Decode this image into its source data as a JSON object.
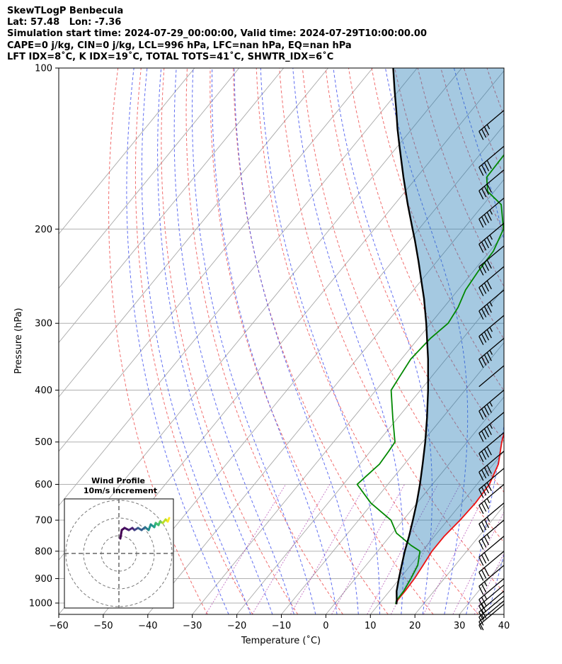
{
  "header": {
    "line1": "SkewTLogP Benbecula",
    "line2": "Lat: 57.48   Lon: -7.36",
    "line3": "Simulation start time: 2024-07-29_00:00:00, Valid time: 2024-07-29T10:00:00.00",
    "line4": "CAPE=0 j/kg, CIN=0 j/kg, LCL=996 hPa, LFC=nan hPa, EQ=nan hPa",
    "line5": "LFT IDX=8˚C, K IDX=19˚C, TOTAL TOTS=41˚C, SHWTR_IDX=6˚C"
  },
  "chart_data": {
    "type": "line",
    "title": "SkewTLogP Benbecula",
    "xlabel": "Temperature (˚C)",
    "ylabel": "Pressure (hPa)",
    "xlim": [
      -60,
      40
    ],
    "ylim": [
      1050,
      100
    ],
    "y_scale": "log",
    "grid": true,
    "x_ticks": [
      "−60",
      "−50",
      "−40",
      "−30",
      "−20",
      "−10",
      "0",
      "10",
      "20",
      "30",
      "40"
    ],
    "x_tick_values": [
      -60,
      -50,
      -40,
      -30,
      -20,
      -10,
      0,
      10,
      20,
      30,
      40
    ],
    "y_ticks": [
      "100",
      "200",
      "300",
      "400",
      "500",
      "600",
      "700",
      "800",
      "900",
      "1000"
    ],
    "y_tick_values": [
      100,
      200,
      300,
      400,
      500,
      600,
      700,
      800,
      900,
      1000
    ],
    "series": [
      {
        "color": "#ee1111",
        "pressure": [
          1005,
          990,
          950,
          900,
          850,
          800,
          750,
          700,
          650,
          600,
          550,
          500,
          450,
          400,
          350,
          300,
          270,
          250,
          230,
          210,
          200,
          180,
          160,
          140,
          130,
          120,
          110,
          100
        ],
        "values": [
          14,
          13.5,
          13.5,
          13.3,
          12.8,
          12.2,
          12.2,
          12.8,
          13.1,
          12.8,
          11.1,
          7.8,
          4.7,
          0.9,
          -3.1,
          -7.7,
          -8.9,
          -8.0,
          -6.8,
          -4.3,
          -2.3,
          1.3,
          4.9,
          10.2,
          13.7,
          16.8,
          19.1,
          19.4
        ]
      },
      {
        "color": "#008800",
        "pressure": [
          1005,
          990,
          950,
          900,
          850,
          800,
          780,
          760,
          740,
          700,
          650,
          600,
          580,
          550,
          520,
          500,
          450,
          400,
          380,
          350,
          320,
          300,
          280,
          260,
          240,
          220,
          200,
          180,
          170,
          160,
          140,
          120,
          100
        ],
        "values": [
          13.8,
          13.3,
          13.2,
          12.5,
          11.6,
          9.5,
          6.4,
          3.7,
          0.9,
          -2.7,
          -10.4,
          -16.9,
          -16.4,
          -15.6,
          -15.9,
          -16.2,
          -21.2,
          -26.6,
          -27.1,
          -27.9,
          -27.3,
          -26.1,
          -26.8,
          -28.3,
          -28.9,
          -29.2,
          -31.0,
          -36.0,
          -41.5,
          -44.3,
          -44.6,
          -45.3,
          -45.8
        ]
      },
      {
        "color": "#000000",
        "pressure": [
          1005,
          990,
          950,
          900,
          850,
          800,
          750,
          700,
          650,
          600,
          550,
          500,
          450,
          400,
          350,
          300,
          270,
          250,
          230,
          210,
          200,
          180,
          160,
          140,
          130,
          120,
          110,
          100
        ],
        "values": [
          14,
          13.4,
          11.6,
          9.8,
          8.0,
          6.1,
          4.3,
          2.2,
          -0.1,
          -2.8,
          -5.9,
          -9.4,
          -13.5,
          -18.3,
          -24.0,
          -31.0,
          -36.0,
          -39.9,
          -44.1,
          -48.8,
          -51.4,
          -57.0,
          -63.0,
          -69.6,
          -73.2,
          -76.9,
          -81.0,
          -85.4
        ]
      }
    ],
    "wind_barbs": {
      "speed_kt": [
        5,
        10,
        15,
        20,
        20,
        25,
        25,
        30,
        30,
        35,
        35,
        35,
        40,
        40,
        40,
        45,
        45,
        50,
        45,
        45,
        45,
        40,
        40,
        45,
        45,
        40,
        40,
        35
      ],
      "pressure": [
        1005,
        990,
        970,
        950,
        925,
        900,
        850,
        800,
        750,
        700,
        650,
        600,
        560,
        520,
        480,
        440,
        400,
        360,
        320,
        290,
        260,
        235,
        215,
        195,
        175,
        155,
        140,
        120
      ]
    },
    "inset": {
      "title_line1": "Wind Profile",
      "title_line2": "10m/s increment"
    }
  }
}
